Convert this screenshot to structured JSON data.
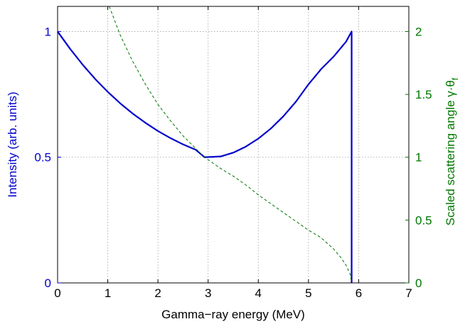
{
  "chart_data": {
    "type": "line",
    "xlabel": "Gamma−ray energy (MeV)",
    "ylabel_left": "Intensity (arb. units)",
    "ylabel_right": "Scaled scattering angle γ·θ",
    "ylabel_right_subscript": "f",
    "xlim": [
      0,
      7
    ],
    "ylim_left": [
      0,
      1.1
    ],
    "ylim_right": [
      0,
      2.2
    ],
    "x_ticks": [
      "0",
      "1",
      "2",
      "3",
      "4",
      "5",
      "6",
      "7"
    ],
    "y_left_ticks": [
      {
        "value": 0,
        "label": "0"
      },
      {
        "value": 0.5,
        "label": "0.5"
      },
      {
        "value": 1,
        "label": "1"
      }
    ],
    "y_right_ticks": [
      {
        "value": 0,
        "label": "0"
      },
      {
        "value": 0.5,
        "label": "0.5"
      },
      {
        "value": 1,
        "label": "1"
      },
      {
        "value": 1.5,
        "label": "1.5"
      },
      {
        "value": 2,
        "label": "2"
      }
    ],
    "grid": true,
    "colors": {
      "intensity": "#0000cc",
      "angle": "#007700",
      "grid": "#a0a0a0"
    },
    "series": [
      {
        "axis": "left",
        "style": "solid",
        "color": "#0000cc",
        "x": [
          0,
          0.25,
          0.5,
          0.75,
          1.0,
          1.25,
          1.5,
          1.75,
          2.0,
          2.25,
          2.5,
          2.75,
          2.93,
          3.25,
          3.5,
          3.75,
          4.0,
          4.25,
          4.5,
          4.75,
          5.0,
          5.25,
          5.5,
          5.75,
          5.86,
          5.86
        ],
        "y": [
          1.0,
          0.931,
          0.868,
          0.811,
          0.76,
          0.714,
          0.673,
          0.637,
          0.604,
          0.576,
          0.551,
          0.53,
          0.5,
          0.503,
          0.518,
          0.542,
          0.574,
          0.614,
          0.663,
          0.721,
          0.79,
          0.85,
          0.9,
          0.96,
          1.0,
          0.0
        ]
      },
      {
        "axis": "right",
        "style": "dashed",
        "color": "#007700",
        "x": [
          1.03,
          1.25,
          1.5,
          1.75,
          2.0,
          2.25,
          2.5,
          2.75,
          2.93,
          3.25,
          3.5,
          3.75,
          4.0,
          4.25,
          4.5,
          4.75,
          5.0,
          5.25,
          5.5,
          5.65,
          5.75,
          5.83,
          5.86
        ],
        "y": [
          2.2,
          1.97,
          1.76,
          1.58,
          1.42,
          1.29,
          1.17,
          1.07,
          1.0,
          0.91,
          0.85,
          0.78,
          0.7,
          0.63,
          0.56,
          0.49,
          0.42,
          0.36,
          0.27,
          0.2,
          0.14,
          0.07,
          0.0
        ]
      }
    ]
  }
}
